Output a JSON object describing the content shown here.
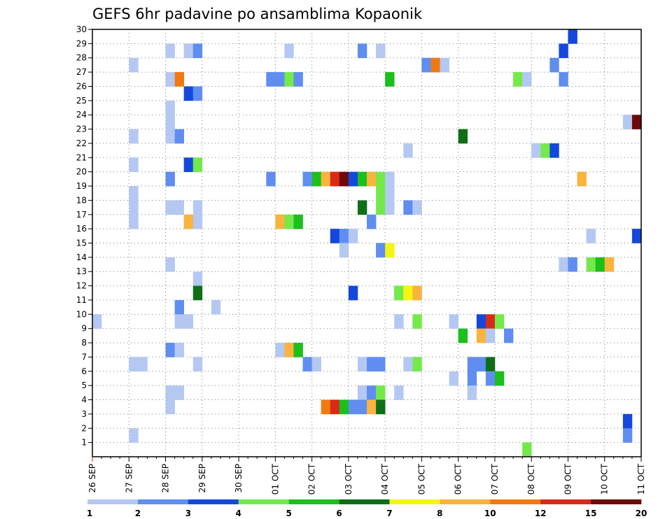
{
  "chart_data": {
    "type": "heatmap",
    "title": "GEFS 6hr padavine po ansamblima Kopaonik",
    "xlabel": "",
    "ylabel": "",
    "x_tick_labels": [
      "26 SEP",
      "27 SEP",
      "28 SEP",
      "29 SEP",
      "30 SEP",
      "01 OCT",
      "02 OCT",
      "03 OCT",
      "04 OCT",
      "05 OCT",
      "06 OCT",
      "07 OCT",
      "08 OCT",
      "09 OCT",
      "10 OCT",
      "11 OCT"
    ],
    "y_tick_labels": [
      "1",
      "2",
      "3",
      "4",
      "5",
      "6",
      "7",
      "8",
      "9",
      "10",
      "11",
      "12",
      "13",
      "14",
      "15",
      "16",
      "17",
      "18",
      "19",
      "20",
      "21",
      "22",
      "23",
      "24",
      "25",
      "26",
      "27",
      "28",
      "29",
      "30"
    ],
    "x_range_steps": [
      0,
      60
    ],
    "y_range_members": [
      0,
      30
    ],
    "steps_per_day": 4,
    "legend": {
      "labels": [
        "1",
        "2",
        "3",
        "4",
        "5",
        "6",
        "7",
        "8",
        "10",
        "12",
        "15",
        "20"
      ],
      "colors": [
        "#b4c8f2",
        "#5f8ef0",
        "#1448dc",
        "#74ea4a",
        "#1cbf1c",
        "#0f6e18",
        "#f5f514",
        "#f8b43c",
        "#f07a10",
        "#d92a18",
        "#6e0a0a"
      ]
    },
    "cells": [
      [
        0,
        10,
        0
      ],
      [
        4,
        28,
        0
      ],
      [
        4,
        23,
        0
      ],
      [
        4,
        21,
        0
      ],
      [
        4,
        19,
        0
      ],
      [
        4,
        18,
        0
      ],
      [
        4,
        17,
        0
      ],
      [
        4,
        7,
        0
      ],
      [
        4,
        2,
        0
      ],
      [
        5,
        7,
        0
      ],
      [
        8,
        29,
        0
      ],
      [
        8,
        27,
        0
      ],
      [
        8,
        25,
        0
      ],
      [
        8,
        24,
        0
      ],
      [
        8,
        23,
        0
      ],
      [
        8,
        20,
        1
      ],
      [
        8,
        18,
        0
      ],
      [
        8,
        14,
        0
      ],
      [
        8,
        8,
        1
      ],
      [
        8,
        5,
        0
      ],
      [
        8,
        4,
        0
      ],
      [
        9,
        27,
        8
      ],
      [
        9,
        23,
        1
      ],
      [
        9,
        18,
        0
      ],
      [
        9,
        11,
        1
      ],
      [
        9,
        10,
        0
      ],
      [
        9,
        8,
        0
      ],
      [
        9,
        5,
        0
      ],
      [
        10,
        29,
        0
      ],
      [
        10,
        26,
        2
      ],
      [
        10,
        21,
        2
      ],
      [
        10,
        17,
        7
      ],
      [
        10,
        10,
        0
      ],
      [
        11,
        29,
        1
      ],
      [
        11,
        26,
        1
      ],
      [
        11,
        21,
        3
      ],
      [
        11,
        18,
        0
      ],
      [
        11,
        17,
        0
      ],
      [
        11,
        13,
        0
      ],
      [
        11,
        12,
        5
      ],
      [
        11,
        7,
        0
      ],
      [
        13,
        11,
        0
      ],
      [
        19,
        27,
        1
      ],
      [
        19,
        20,
        1
      ],
      [
        20,
        27,
        1
      ],
      [
        20,
        17,
        7
      ],
      [
        20,
        8,
        0
      ],
      [
        21,
        27,
        3
      ],
      [
        21,
        17,
        3
      ],
      [
        21,
        8,
        7
      ],
      [
        22,
        27,
        1
      ],
      [
        22,
        17,
        4
      ],
      [
        22,
        8,
        4
      ],
      [
        21,
        29,
        0
      ],
      [
        23,
        20,
        1
      ],
      [
        23,
        7,
        1
      ],
      [
        24,
        20,
        4
      ],
      [
        24,
        7,
        0
      ],
      [
        25,
        20,
        7
      ],
      [
        25,
        4,
        8
      ],
      [
        26,
        20,
        9
      ],
      [
        26,
        16,
        2
      ],
      [
        26,
        4,
        9
      ],
      [
        27,
        20,
        10
      ],
      [
        27,
        16,
        1
      ],
      [
        27,
        15,
        0
      ],
      [
        27,
        4,
        4
      ],
      [
        28,
        20,
        2
      ],
      [
        28,
        16,
        0
      ],
      [
        28,
        12,
        2
      ],
      [
        28,
        4,
        1
      ],
      [
        29,
        29,
        1
      ],
      [
        29,
        20,
        4
      ],
      [
        29,
        18,
        5
      ],
      [
        29,
        7,
        0
      ],
      [
        29,
        5,
        0
      ],
      [
        29,
        4,
        1
      ],
      [
        30,
        20,
        7
      ],
      [
        30,
        17,
        1
      ],
      [
        30,
        7,
        1
      ],
      [
        30,
        5,
        1
      ],
      [
        30,
        4,
        7
      ],
      [
        31,
        29,
        0
      ],
      [
        31,
        20,
        3
      ],
      [
        31,
        19,
        3
      ],
      [
        31,
        18,
        3
      ],
      [
        31,
        15,
        1
      ],
      [
        31,
        7,
        1
      ],
      [
        31,
        5,
        3
      ],
      [
        31,
        4,
        5
      ],
      [
        32,
        27,
        4
      ],
      [
        32,
        20,
        0
      ],
      [
        32,
        19,
        0
      ],
      [
        32,
        18,
        0
      ],
      [
        32,
        15,
        6
      ],
      [
        33,
        12,
        3
      ],
      [
        33,
        10,
        0
      ],
      [
        33,
        5,
        0
      ],
      [
        33,
        12,
        3
      ],
      [
        34,
        22,
        0
      ],
      [
        34,
        18,
        1
      ],
      [
        34,
        12,
        6
      ],
      [
        34,
        7,
        0
      ],
      [
        35,
        18,
        0
      ],
      [
        35,
        12,
        7
      ],
      [
        35,
        10,
        3
      ],
      [
        35,
        7,
        3
      ],
      [
        36,
        28,
        1
      ],
      [
        37,
        28,
        8
      ],
      [
        38,
        28,
        0
      ],
      [
        39,
        10,
        0
      ],
      [
        39,
        6,
        0
      ],
      [
        40,
        23,
        5
      ],
      [
        40,
        9,
        4
      ],
      [
        41,
        7,
        1
      ],
      [
        41,
        6,
        1
      ],
      [
        41,
        5,
        0
      ],
      [
        42,
        10,
        2
      ],
      [
        42,
        9,
        7
      ],
      [
        42,
        7,
        1
      ],
      [
        43,
        10,
        9
      ],
      [
        43,
        9,
        0
      ],
      [
        43,
        7,
        5
      ],
      [
        43,
        6,
        1
      ],
      [
        44,
        10,
        3
      ],
      [
        44,
        6,
        4
      ],
      [
        45,
        9,
        1
      ],
      [
        46,
        27,
        3
      ],
      [
        47,
        27,
        0
      ],
      [
        47,
        1,
        3
      ],
      [
        48,
        22,
        0
      ],
      [
        49,
        22,
        3
      ],
      [
        50,
        22,
        2
      ],
      [
        50,
        28,
        1
      ],
      [
        51,
        29,
        2
      ],
      [
        51,
        27,
        1
      ],
      [
        51,
        14,
        0
      ],
      [
        52,
        30,
        2
      ],
      [
        52,
        14,
        1
      ],
      [
        53,
        20,
        7
      ],
      [
        54,
        16,
        0
      ],
      [
        54,
        14,
        3
      ],
      [
        55,
        14,
        4
      ],
      [
        56,
        14,
        7
      ],
      [
        58,
        24,
        0
      ],
      [
        58,
        3,
        2
      ],
      [
        58,
        2,
        1
      ],
      [
        59,
        24,
        10
      ],
      [
        59,
        16,
        2
      ]
    ]
  }
}
